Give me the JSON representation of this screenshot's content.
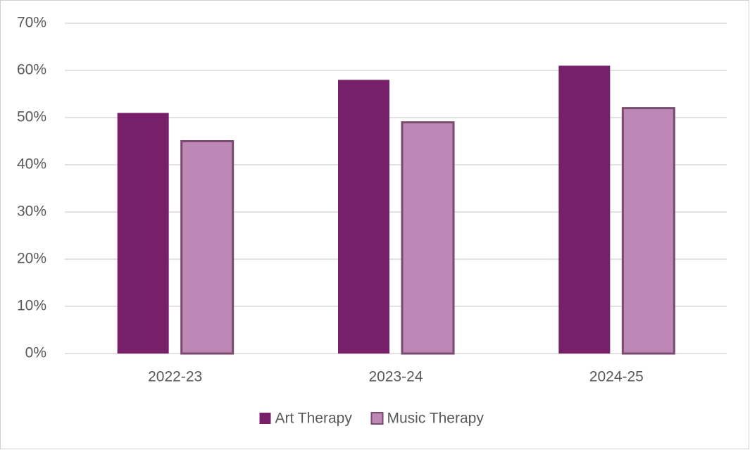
{
  "chart_data": {
    "type": "bar",
    "categories": [
      "2022-23",
      "2023-24",
      "2024-25"
    ],
    "series": [
      {
        "name": "Art Therapy",
        "color": "#781f6a",
        "values": [
          51,
          58,
          61
        ]
      },
      {
        "name": "Music Therapy",
        "color": "#bd88b5",
        "values": [
          45,
          49,
          52
        ]
      }
    ],
    "ylim": [
      0,
      70
    ],
    "yticks": [
      {
        "value": 0,
        "label": "0%"
      },
      {
        "value": 10,
        "label": "10%"
      },
      {
        "value": 20,
        "label": "20%"
      },
      {
        "value": 30,
        "label": "30%"
      },
      {
        "value": 40,
        "label": "40%"
      },
      {
        "value": 50,
        "label": "50%"
      },
      {
        "value": 60,
        "label": "60%"
      },
      {
        "value": 70,
        "label": "70%"
      }
    ],
    "grid": true,
    "legend": "bottom"
  }
}
